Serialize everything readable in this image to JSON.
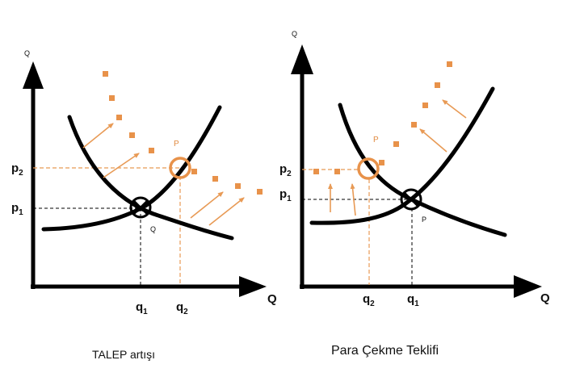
{
  "left_panel": {
    "y_axis_label": "Q",
    "x_axis_label": "Q",
    "p2_label": "p",
    "p2_sub": "2",
    "p1_label": "p",
    "p1_sub": "1",
    "q1_label": "q",
    "q1_sub": "1",
    "q2_label": "q",
    "q2_sub": "2",
    "point_original_label": "Q",
    "point_new_label": "P",
    "caption": "TALEP artışı"
  },
  "right_panel": {
    "y_axis_label": "Q",
    "x_axis_label": "Q",
    "p2_label": "p",
    "p2_sub": "2",
    "p1_label": "p",
    "p1_sub": "1",
    "q2_label": "q",
    "q2_sub": "2",
    "q1_label": "q",
    "q1_sub": "1",
    "point_new_label": "P",
    "point_original_label": "P",
    "caption": "Para Çekme Teklifi"
  },
  "colors": {
    "accent": "#e8924a",
    "line": "#000000"
  }
}
